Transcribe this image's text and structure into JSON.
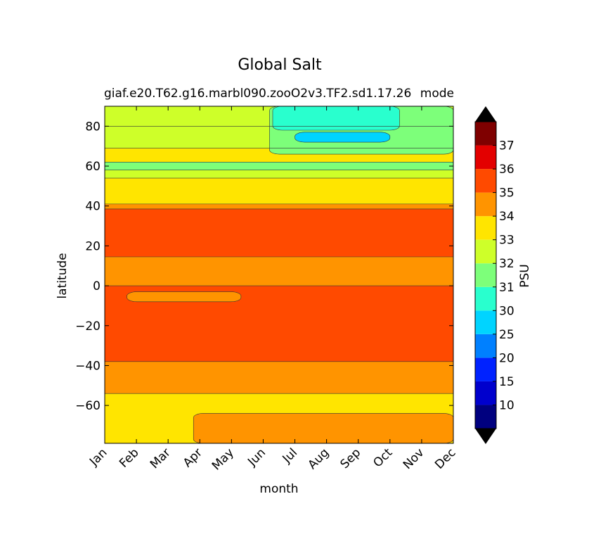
{
  "chart_data": {
    "type": "contourf",
    "title": "Global Salt",
    "subtitle_left": "giaf.e20.T62.g16.marbl090.zooO2v3.TF2.sd1.17.26",
    "subtitle_right": "mode",
    "xlabel": "month",
    "ylabel": "latitude",
    "x_ticklabels": [
      "Jan",
      "Feb",
      "Mar",
      "Apr",
      "May",
      "Jun",
      "Jul",
      "Aug",
      "Sep",
      "Oct",
      "Nov",
      "Dec"
    ],
    "xlim": [
      0,
      11
    ],
    "ylim": [
      -79,
      90
    ],
    "y_ticks": [
      80,
      60,
      40,
      20,
      0,
      -20,
      -40,
      -60
    ],
    "y_ticklabels": [
      "80",
      "60",
      "40",
      "20",
      "0",
      "−20",
      "−40",
      "−60"
    ],
    "colorbar": {
      "label": "PSU",
      "levels": [
        5,
        10,
        15,
        20,
        25,
        30,
        31,
        32,
        33,
        34,
        35,
        36,
        37,
        38
      ],
      "tick_labels": [
        "10",
        "15",
        "20",
        "25",
        "30",
        "31",
        "32",
        "33",
        "34",
        "35",
        "36",
        "37"
      ],
      "colors": [
        "#00007f",
        "#0000cd",
        "#0022ff",
        "#0080ff",
        "#00d4ff",
        "#29ffce",
        "#7dff7a",
        "#ceff29",
        "#ffe500",
        "#ff9400",
        "#ff4a00",
        "#e30000",
        "#7f0000"
      ],
      "extend": "both",
      "under_color": "#000000",
      "over_color": "#000000"
    },
    "bands": [
      {
        "lat": [
          -79,
          -54
        ],
        "value": 33.5,
        "color": "#ffe500"
      },
      {
        "lat": [
          -54,
          -38
        ],
        "value": 34.5,
        "color": "#ff9400"
      },
      {
        "lat": [
          -38,
          0
        ],
        "value": 35.5,
        "color": "#ff4a00"
      },
      {
        "lat": [
          0,
          14.5
        ],
        "value": 34.5,
        "color": "#ff9400"
      },
      {
        "lat": [
          14.5,
          38.5
        ],
        "value": 35.5,
        "color": "#ff4a00"
      },
      {
        "lat": [
          38.5,
          41
        ],
        "value": 34.5,
        "color": "#ff9400"
      },
      {
        "lat": [
          41,
          54
        ],
        "value": 33.5,
        "color": "#ffe500"
      },
      {
        "lat": [
          54,
          58
        ],
        "value": 32.5,
        "color": "#ceff29"
      },
      {
        "lat": [
          58,
          62
        ],
        "value": 31.5,
        "color": "#7dff7a"
      },
      {
        "lat": [
          62,
          69
        ],
        "value": 33.5,
        "color": "#ffe500"
      },
      {
        "lat": [
          69,
          80
        ],
        "value": 32.5,
        "color": "#ceff29"
      },
      {
        "lat": [
          80,
          90
        ],
        "value": 32.5,
        "color": "#ceff29"
      }
    ],
    "features": [
      {
        "desc": "southern high-salinity tongue",
        "x": [
          2.8,
          11
        ],
        "lat": [
          -79,
          -64
        ],
        "value": 34.5,
        "color": "#ff9400"
      },
      {
        "desc": "equatorial fresher pocket",
        "x": [
          0.7,
          4.3
        ],
        "lat": [
          -8,
          -3
        ],
        "value": 34.5,
        "color": "#ff9400"
      },
      {
        "desc": "arctic fresh water summer",
        "x": [
          5.2,
          11
        ],
        "lat": [
          66,
          90
        ],
        "value": 31.5,
        "color": "#7dff7a"
      },
      {
        "desc": "arctic very fresh core",
        "x": [
          5.3,
          9.3
        ],
        "lat": [
          78,
          90
        ],
        "value": 30.5,
        "color": "#29ffce"
      },
      {
        "desc": "arctic fresh lens",
        "x": [
          6,
          9
        ],
        "lat": [
          72,
          77
        ],
        "value": 27.5,
        "color": "#00d4ff"
      }
    ],
    "grid": false,
    "legend": "colorbar-right"
  }
}
